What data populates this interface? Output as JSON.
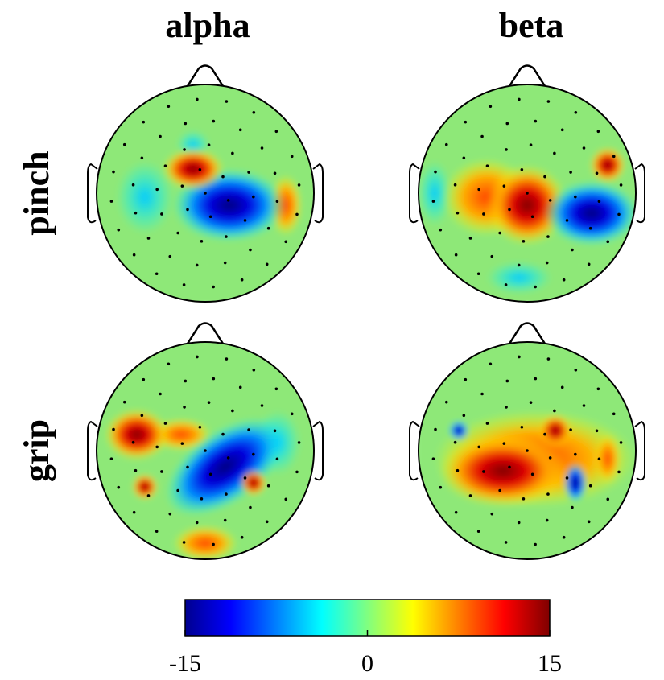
{
  "columns": [
    "alpha",
    "beta"
  ],
  "rows": [
    "pinch",
    "grip"
  ],
  "colorbar": {
    "lim": [
      -15,
      15
    ],
    "ticks": [
      -15,
      0,
      15
    ]
  }
}
